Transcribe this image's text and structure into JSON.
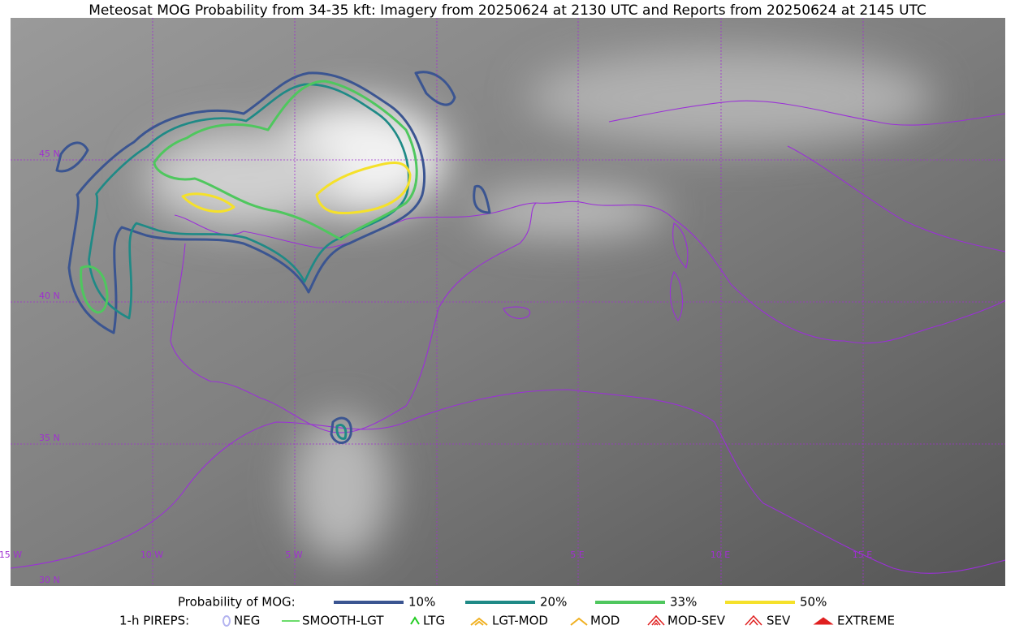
{
  "title": "Meteosat MOG Probability from 34-35 kft: Imagery from 20250624 at 2130 UTC and Reports from 20250624 at 2145 UTC",
  "map": {
    "lat_labels": [
      "45 N",
      "40 N",
      "35 N",
      "30 N"
    ],
    "lon_labels": [
      "15 W",
      "10 W",
      "5 W",
      "5 E",
      "10 E",
      "15 E"
    ]
  },
  "legend": {
    "probability": {
      "label": "Probability of MOG:",
      "items": [
        {
          "label": "10%",
          "color": "#3b5591"
        },
        {
          "label": "20%",
          "color": "#1f8a86"
        },
        {
          "label": "33%",
          "color": "#4fc75e"
        },
        {
          "label": "50%",
          "color": "#f5e12a"
        }
      ]
    },
    "pireps": {
      "label": "1-h PIREPS:",
      "items": [
        {
          "label": "NEG",
          "color": "#b4b4f0"
        },
        {
          "label": "SMOOTH-LGT",
          "color": "#3ad03a"
        },
        {
          "label": "LTG",
          "color": "#22cc22"
        },
        {
          "label": "LGT-MOD",
          "color": "#f0b020"
        },
        {
          "label": "MOD",
          "color": "#f0b020"
        },
        {
          "label": "MOD-SEV",
          "color": "#e02020"
        },
        {
          "label": "SEV",
          "color": "#e02020"
        },
        {
          "label": "EXTREME",
          "color": "#e02020"
        }
      ]
    }
  }
}
